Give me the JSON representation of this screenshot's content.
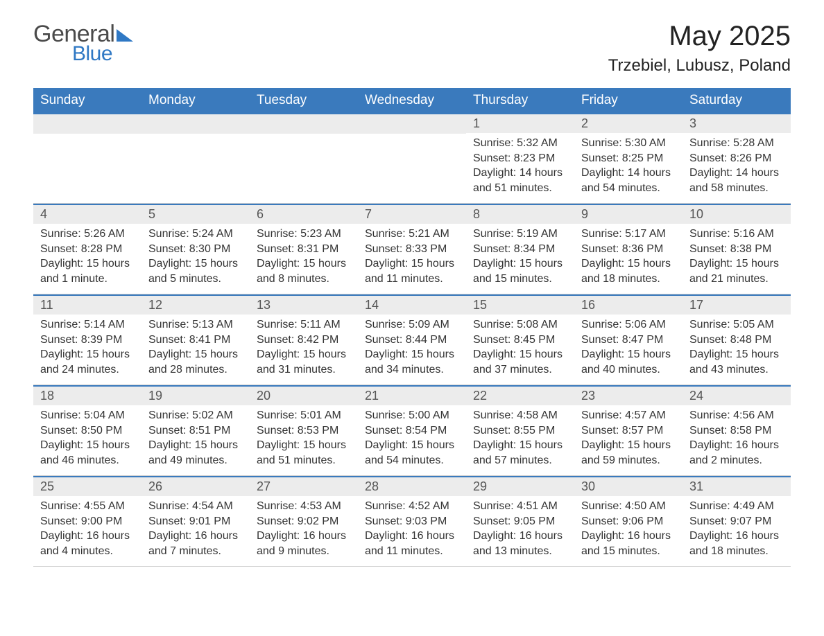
{
  "logo": {
    "text1": "General",
    "text2": "Blue"
  },
  "title": "May 2025",
  "subtitle": "Trzebiel, Lubusz, Poland",
  "colors": {
    "header_bg": "#3a7abd",
    "header_text": "#ffffff",
    "band_bg": "#ececec",
    "body_text": "#333333",
    "accent": "#2f78c4",
    "page_bg": "#ffffff",
    "divider": "#d0d0d0"
  },
  "typography": {
    "title_fontsize": 40,
    "subtitle_fontsize": 24,
    "dayhead_fontsize": 19,
    "daynum_fontsize": 18,
    "detail_fontsize": 16,
    "font_family": "Arial"
  },
  "layout": {
    "columns": 7,
    "rows": 5,
    "week_start": "Sunday"
  },
  "day_headers": [
    "Sunday",
    "Monday",
    "Tuesday",
    "Wednesday",
    "Thursday",
    "Friday",
    "Saturday"
  ],
  "weeks": [
    [
      {
        "day": null
      },
      {
        "day": null
      },
      {
        "day": null
      },
      {
        "day": null
      },
      {
        "day": "1",
        "sunrise": "Sunrise: 5:32 AM",
        "sunset": "Sunset: 8:23 PM",
        "daylight1": "Daylight: 14 hours",
        "daylight2": "and 51 minutes."
      },
      {
        "day": "2",
        "sunrise": "Sunrise: 5:30 AM",
        "sunset": "Sunset: 8:25 PM",
        "daylight1": "Daylight: 14 hours",
        "daylight2": "and 54 minutes."
      },
      {
        "day": "3",
        "sunrise": "Sunrise: 5:28 AM",
        "sunset": "Sunset: 8:26 PM",
        "daylight1": "Daylight: 14 hours",
        "daylight2": "and 58 minutes."
      }
    ],
    [
      {
        "day": "4",
        "sunrise": "Sunrise: 5:26 AM",
        "sunset": "Sunset: 8:28 PM",
        "daylight1": "Daylight: 15 hours",
        "daylight2": "and 1 minute."
      },
      {
        "day": "5",
        "sunrise": "Sunrise: 5:24 AM",
        "sunset": "Sunset: 8:30 PM",
        "daylight1": "Daylight: 15 hours",
        "daylight2": "and 5 minutes."
      },
      {
        "day": "6",
        "sunrise": "Sunrise: 5:23 AM",
        "sunset": "Sunset: 8:31 PM",
        "daylight1": "Daylight: 15 hours",
        "daylight2": "and 8 minutes."
      },
      {
        "day": "7",
        "sunrise": "Sunrise: 5:21 AM",
        "sunset": "Sunset: 8:33 PM",
        "daylight1": "Daylight: 15 hours",
        "daylight2": "and 11 minutes."
      },
      {
        "day": "8",
        "sunrise": "Sunrise: 5:19 AM",
        "sunset": "Sunset: 8:34 PM",
        "daylight1": "Daylight: 15 hours",
        "daylight2": "and 15 minutes."
      },
      {
        "day": "9",
        "sunrise": "Sunrise: 5:17 AM",
        "sunset": "Sunset: 8:36 PM",
        "daylight1": "Daylight: 15 hours",
        "daylight2": "and 18 minutes."
      },
      {
        "day": "10",
        "sunrise": "Sunrise: 5:16 AM",
        "sunset": "Sunset: 8:38 PM",
        "daylight1": "Daylight: 15 hours",
        "daylight2": "and 21 minutes."
      }
    ],
    [
      {
        "day": "11",
        "sunrise": "Sunrise: 5:14 AM",
        "sunset": "Sunset: 8:39 PM",
        "daylight1": "Daylight: 15 hours",
        "daylight2": "and 24 minutes."
      },
      {
        "day": "12",
        "sunrise": "Sunrise: 5:13 AM",
        "sunset": "Sunset: 8:41 PM",
        "daylight1": "Daylight: 15 hours",
        "daylight2": "and 28 minutes."
      },
      {
        "day": "13",
        "sunrise": "Sunrise: 5:11 AM",
        "sunset": "Sunset: 8:42 PM",
        "daylight1": "Daylight: 15 hours",
        "daylight2": "and 31 minutes."
      },
      {
        "day": "14",
        "sunrise": "Sunrise: 5:09 AM",
        "sunset": "Sunset: 8:44 PM",
        "daylight1": "Daylight: 15 hours",
        "daylight2": "and 34 minutes."
      },
      {
        "day": "15",
        "sunrise": "Sunrise: 5:08 AM",
        "sunset": "Sunset: 8:45 PM",
        "daylight1": "Daylight: 15 hours",
        "daylight2": "and 37 minutes."
      },
      {
        "day": "16",
        "sunrise": "Sunrise: 5:06 AM",
        "sunset": "Sunset: 8:47 PM",
        "daylight1": "Daylight: 15 hours",
        "daylight2": "and 40 minutes."
      },
      {
        "day": "17",
        "sunrise": "Sunrise: 5:05 AM",
        "sunset": "Sunset: 8:48 PM",
        "daylight1": "Daylight: 15 hours",
        "daylight2": "and 43 minutes."
      }
    ],
    [
      {
        "day": "18",
        "sunrise": "Sunrise: 5:04 AM",
        "sunset": "Sunset: 8:50 PM",
        "daylight1": "Daylight: 15 hours",
        "daylight2": "and 46 minutes."
      },
      {
        "day": "19",
        "sunrise": "Sunrise: 5:02 AM",
        "sunset": "Sunset: 8:51 PM",
        "daylight1": "Daylight: 15 hours",
        "daylight2": "and 49 minutes."
      },
      {
        "day": "20",
        "sunrise": "Sunrise: 5:01 AM",
        "sunset": "Sunset: 8:53 PM",
        "daylight1": "Daylight: 15 hours",
        "daylight2": "and 51 minutes."
      },
      {
        "day": "21",
        "sunrise": "Sunrise: 5:00 AM",
        "sunset": "Sunset: 8:54 PM",
        "daylight1": "Daylight: 15 hours",
        "daylight2": "and 54 minutes."
      },
      {
        "day": "22",
        "sunrise": "Sunrise: 4:58 AM",
        "sunset": "Sunset: 8:55 PM",
        "daylight1": "Daylight: 15 hours",
        "daylight2": "and 57 minutes."
      },
      {
        "day": "23",
        "sunrise": "Sunrise: 4:57 AM",
        "sunset": "Sunset: 8:57 PM",
        "daylight1": "Daylight: 15 hours",
        "daylight2": "and 59 minutes."
      },
      {
        "day": "24",
        "sunrise": "Sunrise: 4:56 AM",
        "sunset": "Sunset: 8:58 PM",
        "daylight1": "Daylight: 16 hours",
        "daylight2": "and 2 minutes."
      }
    ],
    [
      {
        "day": "25",
        "sunrise": "Sunrise: 4:55 AM",
        "sunset": "Sunset: 9:00 PM",
        "daylight1": "Daylight: 16 hours",
        "daylight2": "and 4 minutes."
      },
      {
        "day": "26",
        "sunrise": "Sunrise: 4:54 AM",
        "sunset": "Sunset: 9:01 PM",
        "daylight1": "Daylight: 16 hours",
        "daylight2": "and 7 minutes."
      },
      {
        "day": "27",
        "sunrise": "Sunrise: 4:53 AM",
        "sunset": "Sunset: 9:02 PM",
        "daylight1": "Daylight: 16 hours",
        "daylight2": "and 9 minutes."
      },
      {
        "day": "28",
        "sunrise": "Sunrise: 4:52 AM",
        "sunset": "Sunset: 9:03 PM",
        "daylight1": "Daylight: 16 hours",
        "daylight2": "and 11 minutes."
      },
      {
        "day": "29",
        "sunrise": "Sunrise: 4:51 AM",
        "sunset": "Sunset: 9:05 PM",
        "daylight1": "Daylight: 16 hours",
        "daylight2": "and 13 minutes."
      },
      {
        "day": "30",
        "sunrise": "Sunrise: 4:50 AM",
        "sunset": "Sunset: 9:06 PM",
        "daylight1": "Daylight: 16 hours",
        "daylight2": "and 15 minutes."
      },
      {
        "day": "31",
        "sunrise": "Sunrise: 4:49 AM",
        "sunset": "Sunset: 9:07 PM",
        "daylight1": "Daylight: 16 hours",
        "daylight2": "and 18 minutes."
      }
    ]
  ]
}
